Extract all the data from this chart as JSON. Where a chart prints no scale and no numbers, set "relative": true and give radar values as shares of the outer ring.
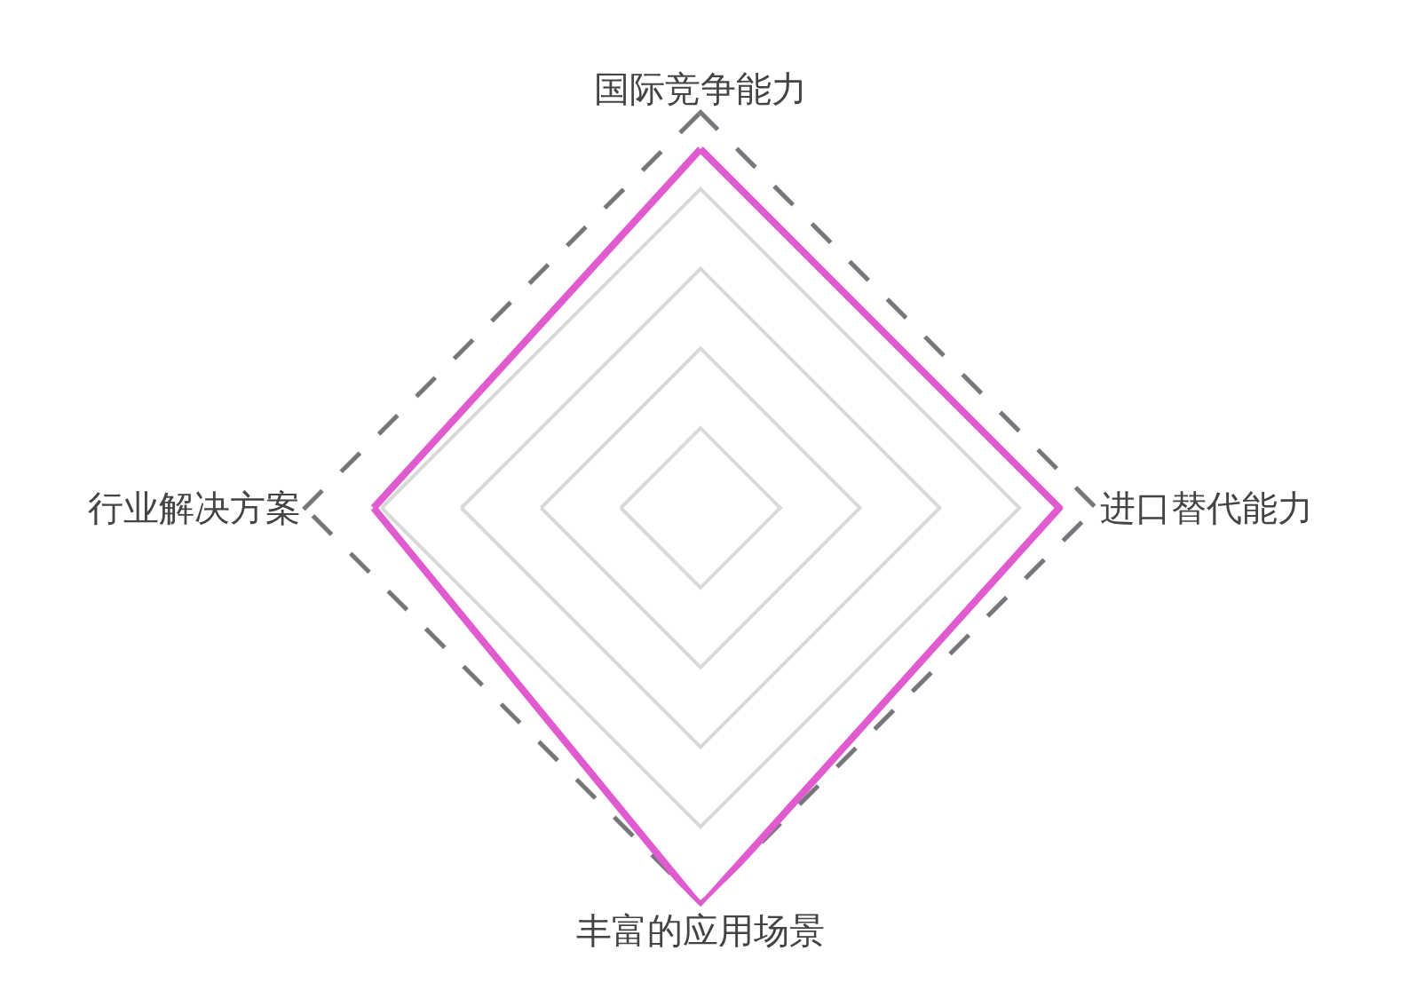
{
  "chart_data": {
    "type": "radar",
    "relative": true,
    "grid": true,
    "categories": [
      "国际竞争能力",
      "进口替代能力",
      "丰富的应用场景",
      "行业解决方案"
    ],
    "series": [
      {
        "color": "#77767b",
        "line_style": "dashed",
        "values": [
          1,
          1,
          1,
          1
        ]
      },
      {
        "color": "#e05ad0",
        "line_style": "solid",
        "values": [
          0.9,
          0.9,
          1,
          0.82
        ]
      }
    ]
  }
}
